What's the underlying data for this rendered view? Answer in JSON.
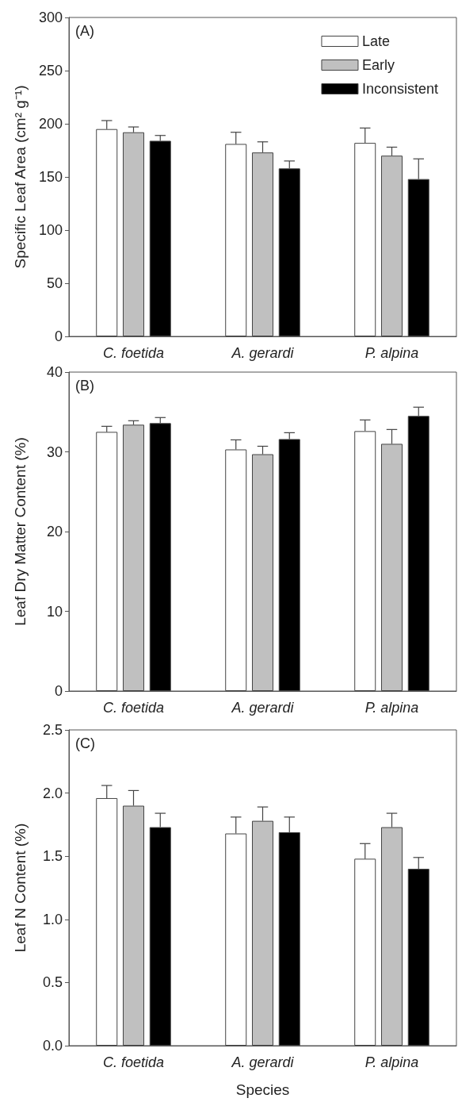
{
  "chart_data": [
    {
      "type": "bar",
      "ylabel": "Specific Leaf Area (cm² g⁻¹)",
      "annotations": [
        "(A)"
      ],
      "categories": [
        "C. foetida",
        "A. gerardi",
        "P. alpina"
      ],
      "series": [
        {
          "name": "Late",
          "color": "#ffffff",
          "values": [
            195,
            181,
            182
          ],
          "errors": [
            [
              195,
              203
            ],
            [
              181,
              192
            ],
            [
              182,
              196
            ]
          ]
        },
        {
          "name": "Early",
          "color": "#c0c0c0",
          "values": [
            192,
            173,
            170
          ],
          "errors": [
            [
              192,
              197
            ],
            [
              173,
              183
            ],
            [
              170,
              178
            ]
          ]
        },
        {
          "name": "Inconsistent",
          "color": "#000000",
          "values": [
            184,
            158,
            148
          ],
          "errors": [
            [
              184,
              189
            ],
            [
              158,
              165
            ],
            [
              148,
              167
            ]
          ]
        }
      ],
      "ylim": [
        0,
        300
      ],
      "yticks": [
        0,
        50,
        100,
        150,
        200,
        250,
        300
      ],
      "legend": "top right",
      "grid": false
    },
    {
      "type": "bar",
      "ylabel": "Leaf Dry Matter Content (%)",
      "annotations": [
        "(B)"
      ],
      "categories": [
        "C. foetida",
        "A. gerardi",
        "P. alpina"
      ],
      "series": [
        {
          "color": "#ffffff",
          "values": [
            32.5,
            30.3,
            32.6
          ],
          "errors": [
            [
              32.5,
              33.2
            ],
            [
              30.3,
              31.5
            ],
            [
              32.6,
              34.0
            ]
          ]
        },
        {
          "color": "#c0c0c0",
          "values": [
            33.4,
            29.7,
            31.0
          ],
          "errors": [
            [
              33.4,
              33.9
            ],
            [
              29.7,
              30.7
            ],
            [
              31.0,
              32.8
            ]
          ]
        },
        {
          "color": "#000000",
          "values": [
            33.6,
            31.6,
            34.5
          ],
          "errors": [
            [
              33.6,
              34.3
            ],
            [
              31.6,
              32.4
            ],
            [
              34.5,
              35.6
            ]
          ]
        }
      ],
      "ylim": [
        0,
        40
      ],
      "yticks": [
        0,
        10,
        20,
        30,
        40
      ],
      "grid": false
    },
    {
      "type": "bar",
      "xlabel": "Species",
      "ylabel": "Leaf N Content (%)",
      "annotations": [
        "(C)"
      ],
      "categories": [
        "C. foetida",
        "A. gerardi",
        "P. alpina"
      ],
      "series": [
        {
          "color": "#ffffff",
          "values": [
            1.96,
            1.68,
            1.48
          ],
          "errors": [
            [
              1.96,
              2.06
            ],
            [
              1.68,
              1.81
            ],
            [
              1.48,
              1.6
            ]
          ]
        },
        {
          "color": "#c0c0c0",
          "values": [
            1.9,
            1.78,
            1.73
          ],
          "errors": [
            [
              1.9,
              2.02
            ],
            [
              1.78,
              1.89
            ],
            [
              1.73,
              1.84
            ]
          ]
        },
        {
          "color": "#000000",
          "values": [
            1.73,
            1.69,
            1.4
          ],
          "errors": [
            [
              1.73,
              1.84
            ],
            [
              1.69,
              1.81
            ],
            [
              1.4,
              1.49
            ]
          ]
        }
      ],
      "ylim": [
        0,
        2.5
      ],
      "yticks": [
        {
          "value": 0,
          "label": "0.0"
        },
        {
          "value": 0.5,
          "label": "0.5"
        },
        {
          "value": 1,
          "label": "1.0"
        },
        {
          "value": 1.5,
          "label": "1.5"
        },
        {
          "value": 2,
          "label": "2.0"
        },
        {
          "value": 2.5,
          "label": "2.5"
        }
      ],
      "grid": false
    }
  ]
}
